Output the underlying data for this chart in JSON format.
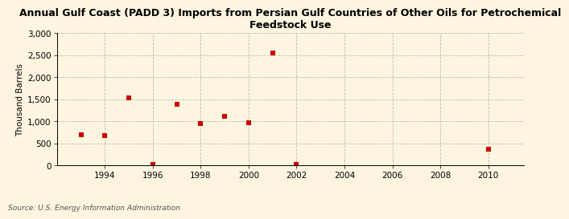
{
  "title": "Annual Gulf Coast (PADD 3) Imports from Persian Gulf Countries of Other Oils for Petrochemical\nFeedstock Use",
  "ylabel": "Thousand Barrels",
  "source": "Source: U.S. Energy Information Administration",
  "background_color": "#fdf5e0",
  "plot_bg_color": "#fdf5e0",
  "marker_color": "#cc0000",
  "marker": "s",
  "markersize": 4,
  "years": [
    1993,
    1994,
    1995,
    1996,
    1997,
    1998,
    1999,
    2000,
    2001,
    2002,
    2010
  ],
  "values": [
    700,
    670,
    1520,
    10,
    1390,
    940,
    1110,
    970,
    2550,
    10,
    370
  ],
  "xlim": [
    1992.0,
    2011.5
  ],
  "ylim": [
    0,
    3000
  ],
  "yticks": [
    0,
    500,
    1000,
    1500,
    2000,
    2500,
    3000
  ],
  "xticks": [
    1994,
    1996,
    1998,
    2000,
    2002,
    2004,
    2006,
    2008,
    2010
  ],
  "grid_color": "#bbbbbb",
  "grid_style": "--",
  "title_fontsize": 9,
  "axis_fontsize": 7.5,
  "ylabel_fontsize": 7.5,
  "source_fontsize": 6.5
}
